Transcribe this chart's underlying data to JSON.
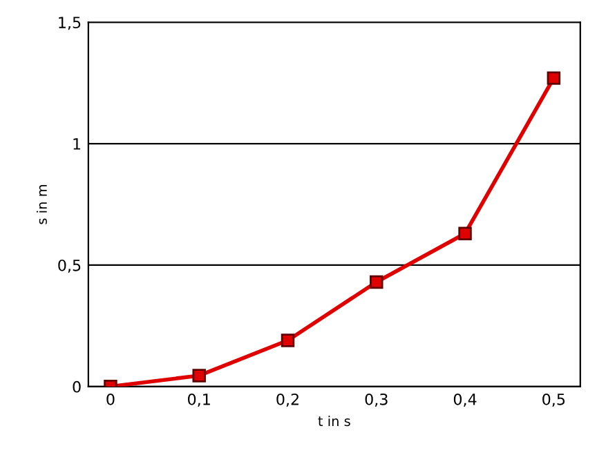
{
  "chart_data": {
    "type": "line",
    "xlabel": "t in s",
    "ylabel": "s in m",
    "x": [
      0,
      0.1,
      0.2,
      0.3,
      0.4,
      0.5
    ],
    "series": [
      {
        "color": "#e00000",
        "values": [
          0,
          0.045,
          0.19,
          0.43,
          0.63,
          1.27
        ]
      }
    ],
    "xlim": [
      -0.025,
      0.53
    ],
    "ylim": [
      0,
      1.5
    ],
    "xticks": [
      0,
      {
        "value": 0.1,
        "label": "0,1"
      },
      {
        "value": 0.2,
        "label": "0,2"
      },
      {
        "value": 0.3,
        "label": "0,3"
      },
      {
        "value": 0.4,
        "label": "0,4"
      },
      {
        "value": 0.5,
        "label": "0,5"
      }
    ],
    "yticks": [
      0,
      {
        "value": 0.5,
        "label": "0,5"
      },
      1,
      {
        "value": 1.5,
        "label": "1,5"
      }
    ],
    "grid": "y",
    "marker": "square",
    "line_style": "solid"
  }
}
